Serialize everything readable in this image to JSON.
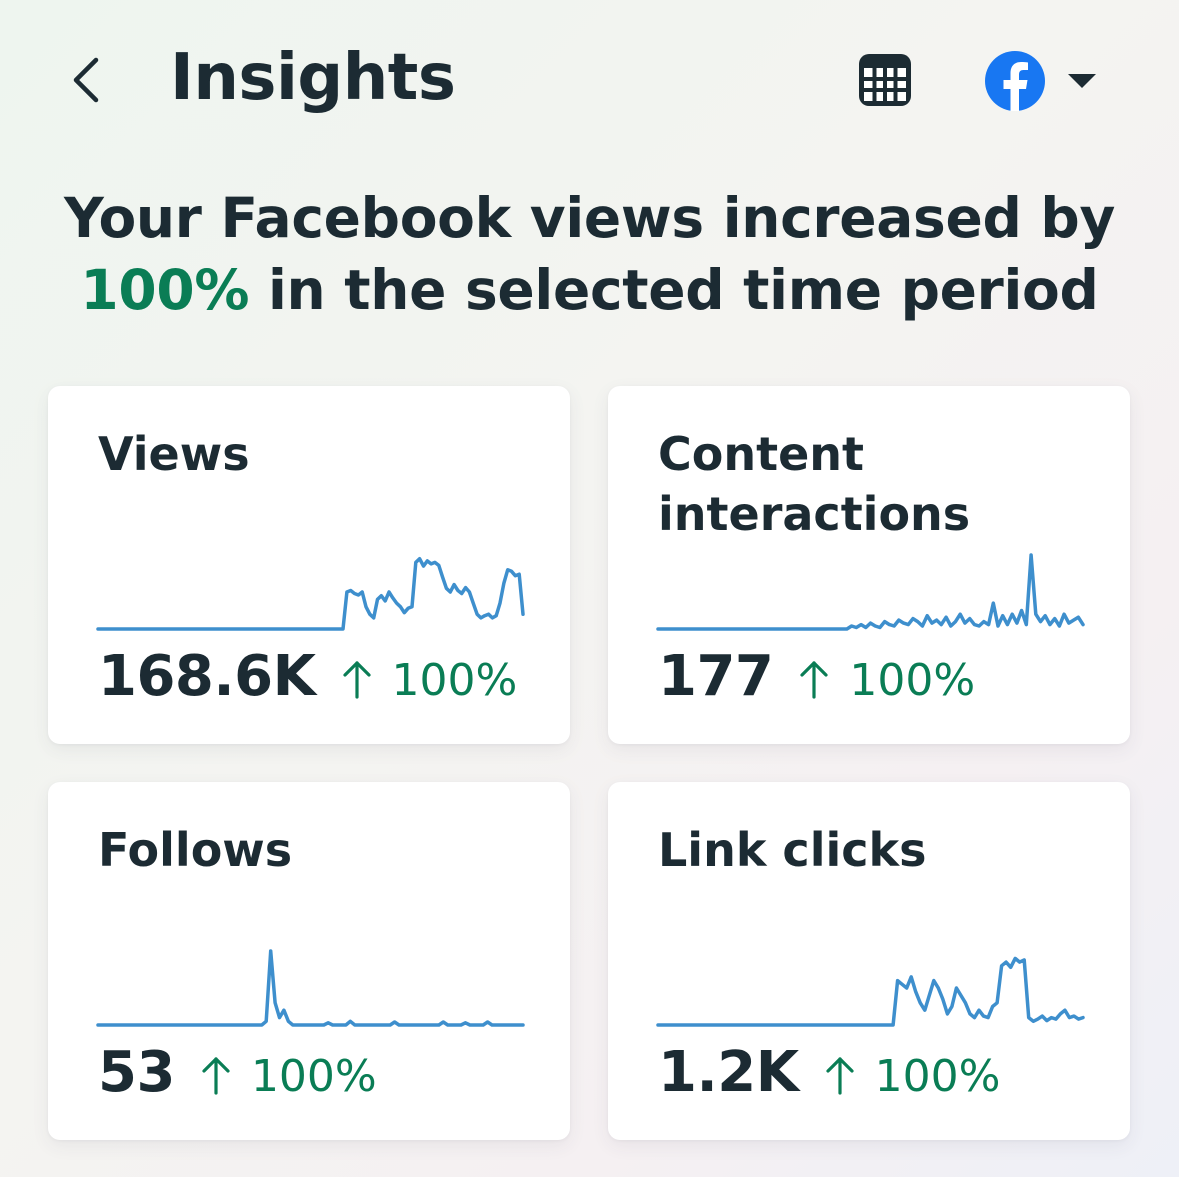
{
  "header": {
    "back_icon": "chevron-left-icon",
    "title": "Insights",
    "calendar_icon": "calendar-icon",
    "account_icon": "facebook-logo-icon",
    "dropdown_icon": "caret-down-icon"
  },
  "summary": {
    "prefix": "Your Facebook views increased by",
    "percent": "100%",
    "suffix": "in the selected time period"
  },
  "colors": {
    "accent_positive": "#0a7d55",
    "sparkline": "#3e8fcd",
    "facebook_blue": "#1877f2",
    "text_primary": "#1c2b33"
  },
  "cards": [
    {
      "title": "Views",
      "value": "168.6K",
      "change": "100%",
      "trend": [
        0,
        0,
        0,
        0,
        0,
        0,
        0,
        0,
        0,
        0,
        0,
        0,
        0,
        0,
        0,
        0,
        0,
        0,
        0,
        0,
        0,
        0,
        0,
        0,
        0,
        0,
        0,
        0,
        0,
        0,
        0,
        0,
        0,
        0,
        0,
        0,
        0,
        0,
        0,
        0,
        0,
        0,
        0,
        0,
        0,
        0,
        0,
        0,
        0,
        0,
        0,
        0,
        0,
        0,
        0,
        0,
        0,
        0,
        0,
        0,
        0,
        0,
        0,
        0,
        0,
        0.5,
        0.52,
        0.48,
        0.46,
        0.5,
        0.3,
        0.2,
        0.15,
        0.4,
        0.45,
        0.38,
        0.5,
        0.42,
        0.35,
        0.3,
        0.22,
        0.28,
        0.3,
        0.9,
        0.95,
        0.85,
        0.92,
        0.88,
        0.9,
        0.86,
        0.7,
        0.55,
        0.5,
        0.6,
        0.52,
        0.48,
        0.56,
        0.5,
        0.35,
        0.2,
        0.15,
        0.18,
        0.2,
        0.15,
        0.18,
        0.35,
        0.62,
        0.8,
        0.78,
        0.72,
        0.74,
        0.2
      ]
    },
    {
      "title": "Content interactions",
      "value": "177",
      "change": "100%",
      "trend": [
        0,
        0,
        0,
        0,
        0,
        0,
        0,
        0,
        0,
        0,
        0,
        0,
        0,
        0,
        0,
        0,
        0,
        0,
        0,
        0,
        0,
        0,
        0,
        0,
        0,
        0,
        0,
        0,
        0,
        0,
        0,
        0,
        0,
        0,
        0,
        0,
        0,
        0,
        0,
        0,
        0,
        0.04,
        0.02,
        0.06,
        0.02,
        0.08,
        0.04,
        0.02,
        0.1,
        0.06,
        0.04,
        0.12,
        0.08,
        0.06,
        0.14,
        0.1,
        0.04,
        0.18,
        0.08,
        0.12,
        0.06,
        0.16,
        0.04,
        0.1,
        0.2,
        0.08,
        0.14,
        0.06,
        0.04,
        0.1,
        0.06,
        0.35,
        0.04,
        0.18,
        0.06,
        0.2,
        0.08,
        0.25,
        0.06,
        1.0,
        0.2,
        0.1,
        0.18,
        0.06,
        0.14,
        0.04,
        0.2,
        0.08,
        0.12,
        0.16,
        0.06
      ]
    },
    {
      "title": "Follows",
      "value": "53",
      "change": "100%",
      "trend": [
        0,
        0,
        0,
        0,
        0,
        0,
        0,
        0,
        0,
        0,
        0,
        0,
        0,
        0,
        0,
        0,
        0,
        0,
        0,
        0,
        0,
        0,
        0,
        0,
        0,
        0,
        0,
        0,
        0,
        0,
        0,
        0,
        0,
        0,
        0,
        0,
        0,
        0,
        0.05,
        1.0,
        0.3,
        0.1,
        0.2,
        0.05,
        0,
        0,
        0,
        0,
        0,
        0,
        0,
        0,
        0.03,
        0,
        0,
        0,
        0,
        0.05,
        0,
        0,
        0,
        0,
        0,
        0,
        0,
        0,
        0,
        0.04,
        0,
        0,
        0,
        0,
        0,
        0,
        0,
        0,
        0,
        0,
        0.04,
        0,
        0,
        0,
        0,
        0.03,
        0,
        0,
        0,
        0,
        0.04,
        0,
        0,
        0,
        0,
        0,
        0,
        0,
        0
      ]
    },
    {
      "title": "Link clicks",
      "value": "1.2K",
      "change": "100%",
      "trend": [
        0,
        0,
        0,
        0,
        0,
        0,
        0,
        0,
        0,
        0,
        0,
        0,
        0,
        0,
        0,
        0,
        0,
        0,
        0,
        0,
        0,
        0,
        0,
        0,
        0,
        0,
        0,
        0,
        0,
        0,
        0,
        0,
        0,
        0,
        0,
        0,
        0,
        0,
        0,
        0,
        0,
        0,
        0,
        0,
        0,
        0,
        0,
        0,
        0,
        0,
        0,
        0,
        0,
        0.6,
        0.55,
        0.5,
        0.65,
        0.45,
        0.3,
        0.2,
        0.4,
        0.6,
        0.5,
        0.35,
        0.15,
        0.25,
        0.5,
        0.4,
        0.3,
        0.15,
        0.1,
        0.2,
        0.12,
        0.1,
        0.25,
        0.3,
        0.8,
        0.85,
        0.78,
        0.9,
        0.85,
        0.88,
        0.1,
        0.05,
        0.08,
        0.12,
        0.06,
        0.1,
        0.08,
        0.15,
        0.2,
        0.1,
        0.12,
        0.08,
        0.1
      ]
    }
  ]
}
